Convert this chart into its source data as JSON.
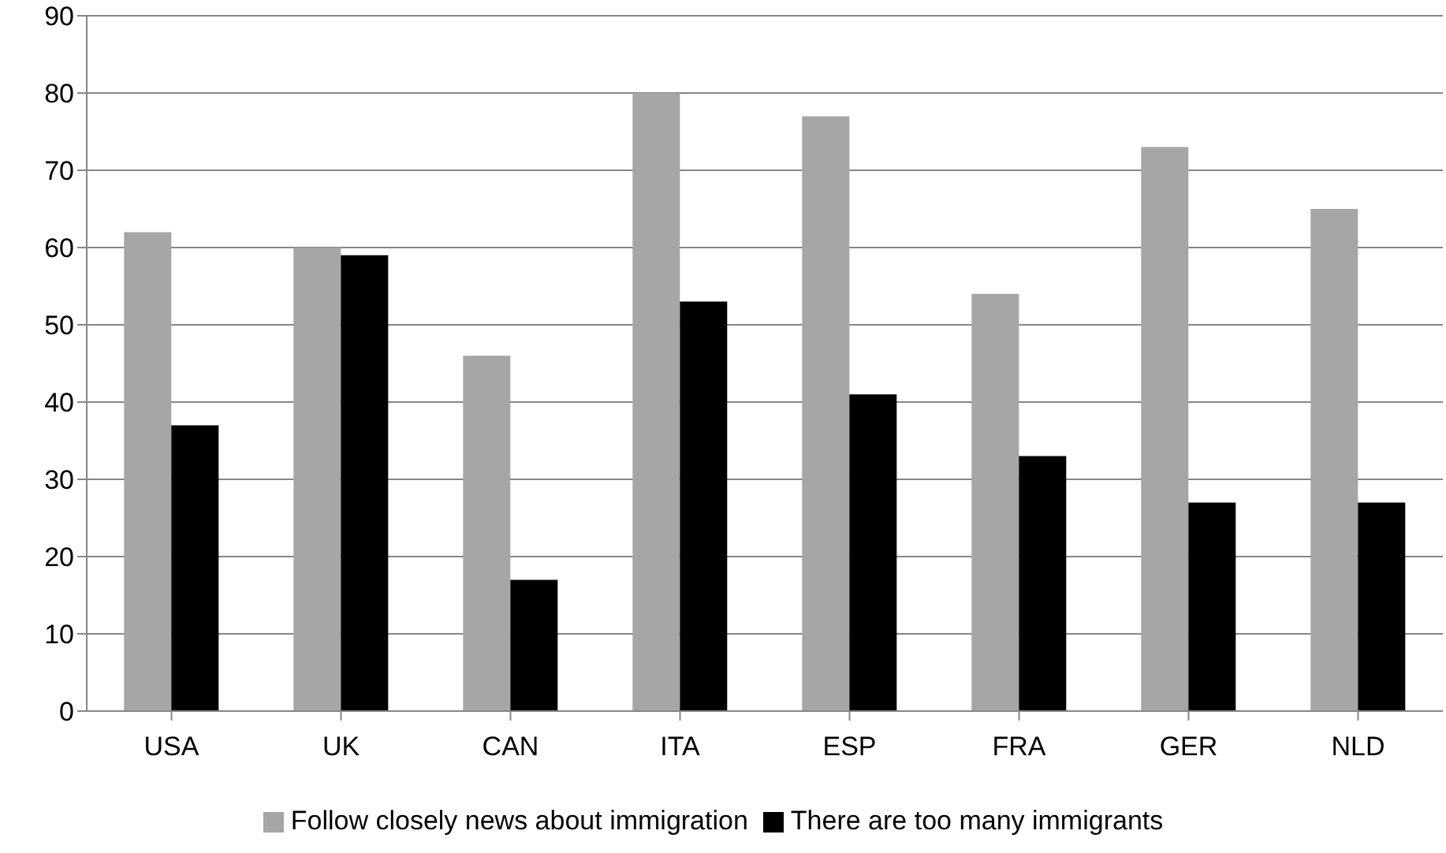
{
  "chart_data": {
    "type": "bar",
    "categories": [
      "USA",
      "UK",
      "CAN",
      "ITA",
      "ESP",
      "FRA",
      "GER",
      "NLD"
    ],
    "series": [
      {
        "name": "Follow closely news about immigration",
        "color": "#a6a6a6",
        "values": [
          62,
          60,
          46,
          80,
          77,
          54,
          73,
          65
        ]
      },
      {
        "name": "There are too many immigrants",
        "color": "#000000",
        "values": [
          37,
          59,
          17,
          53,
          41,
          33,
          27,
          27
        ]
      }
    ],
    "ylim": [
      0,
      90
    ],
    "yticks": [
      0,
      10,
      20,
      30,
      40,
      50,
      60,
      70,
      80,
      90
    ],
    "grid": "y",
    "legend": "bottom"
  }
}
